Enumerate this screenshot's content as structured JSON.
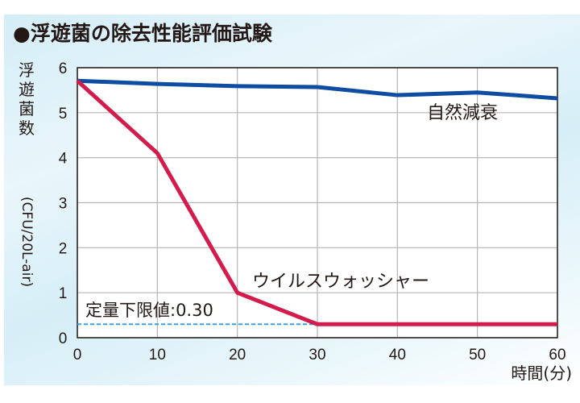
{
  "title": "●浮遊菌の除去性能評価試験",
  "chart_data": {
    "type": "line",
    "ylabel": "浮遊菌数",
    "ylabel_unit": "(CFU/20L-air)",
    "xlabel": "時間(分)",
    "x": [
      0,
      10,
      20,
      30,
      40,
      50,
      60
    ],
    "xlim": [
      0,
      60
    ],
    "ylim": [
      0,
      6
    ],
    "xticks": [
      "0",
      "10",
      "20",
      "30",
      "40",
      "50",
      "60"
    ],
    "yticks": [
      "0",
      "1",
      "2",
      "3",
      "4",
      "5",
      "6"
    ],
    "grid": true,
    "series": [
      {
        "name": "自然減衰",
        "color": "#0e4da1",
        "values": [
          5.71,
          5.64,
          5.59,
          5.57,
          5.39,
          5.45,
          5.32
        ]
      },
      {
        "name": "ウイルスウォッシャー",
        "color": "#d41c4c",
        "values": [
          5.71,
          4.1,
          1.0,
          0.3,
          0.3,
          0.3,
          0.3
        ]
      }
    ],
    "annotation": {
      "text": "定量下限値:0.30",
      "value": 0.3,
      "x_range": [
        0,
        30
      ],
      "color": "#2aa6e0"
    }
  }
}
